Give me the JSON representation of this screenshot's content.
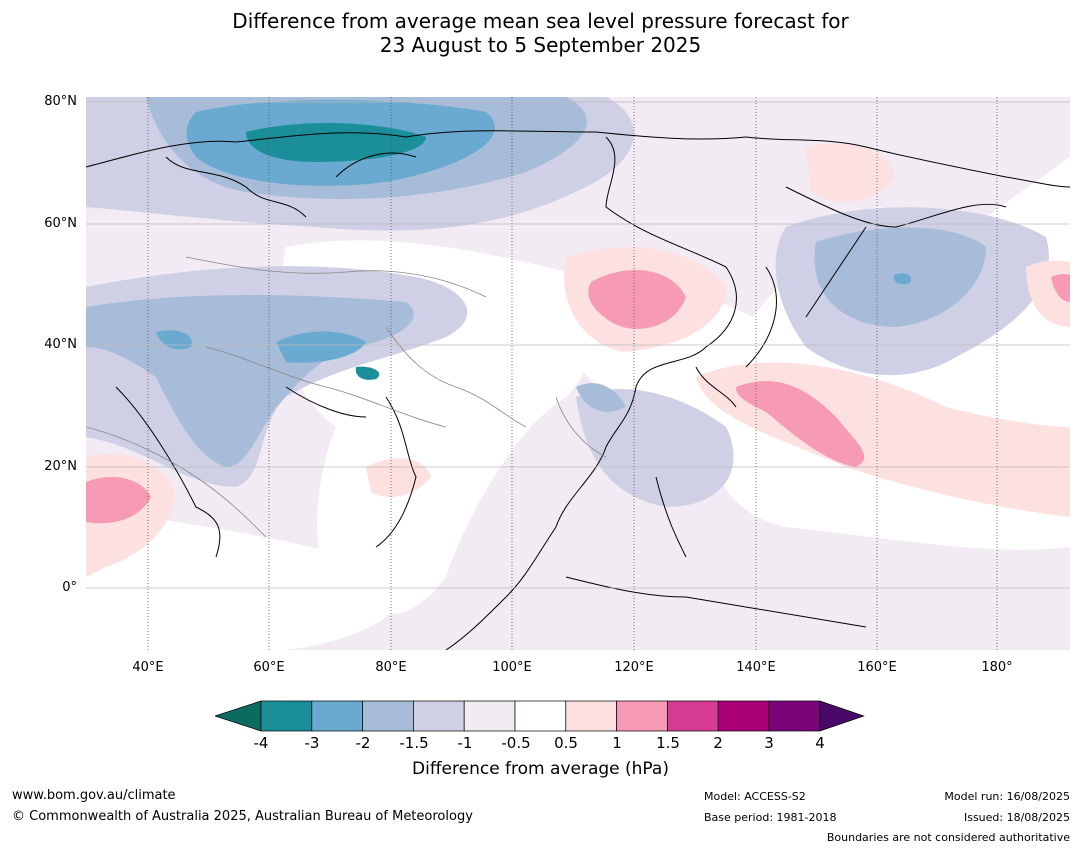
{
  "title_line1": "Difference from average mean sea level pressure forecast for",
  "title_line2": "23 August to 5 September 2025",
  "map": {
    "lat_labels": [
      "80°N",
      "60°N",
      "40°N",
      "20°N",
      "0°"
    ],
    "lon_labels": [
      "40°E",
      "60°E",
      "80°E",
      "100°E",
      "120°E",
      "140°E",
      "160°E",
      "180°"
    ]
  },
  "colorbar": {
    "ticks": [
      "-4",
      "-3",
      "-2",
      "-1.5",
      "-1",
      "-0.5",
      "0.5",
      "1",
      "1.5",
      "2",
      "3",
      "4"
    ],
    "colors": {
      "below": "#0b6b5e",
      "bins": [
        "#1b8f99",
        "#6aaad0",
        "#a7bcd8",
        "#cfd0e5",
        "#f2ebf4",
        "#ffffff",
        "#fde0e0",
        "#f79ab6",
        "#d73c95",
        "#ab0078",
        "#7b0578"
      ],
      "above": "#4a0868"
    },
    "label": "Difference from average (hPa)"
  },
  "footer": {
    "url": "www.bom.gov.au/climate",
    "copyright": "© Commonwealth of Australia 2025, Australian Bureau of Meteorology",
    "model": "Model: ACCESS-S2",
    "base_period": "Base period: 1981-2018",
    "model_run": "Model run: 16/08/2025",
    "issued": "Issued: 18/08/2025",
    "disclaimer": "Boundaries are not considered authoritative"
  }
}
